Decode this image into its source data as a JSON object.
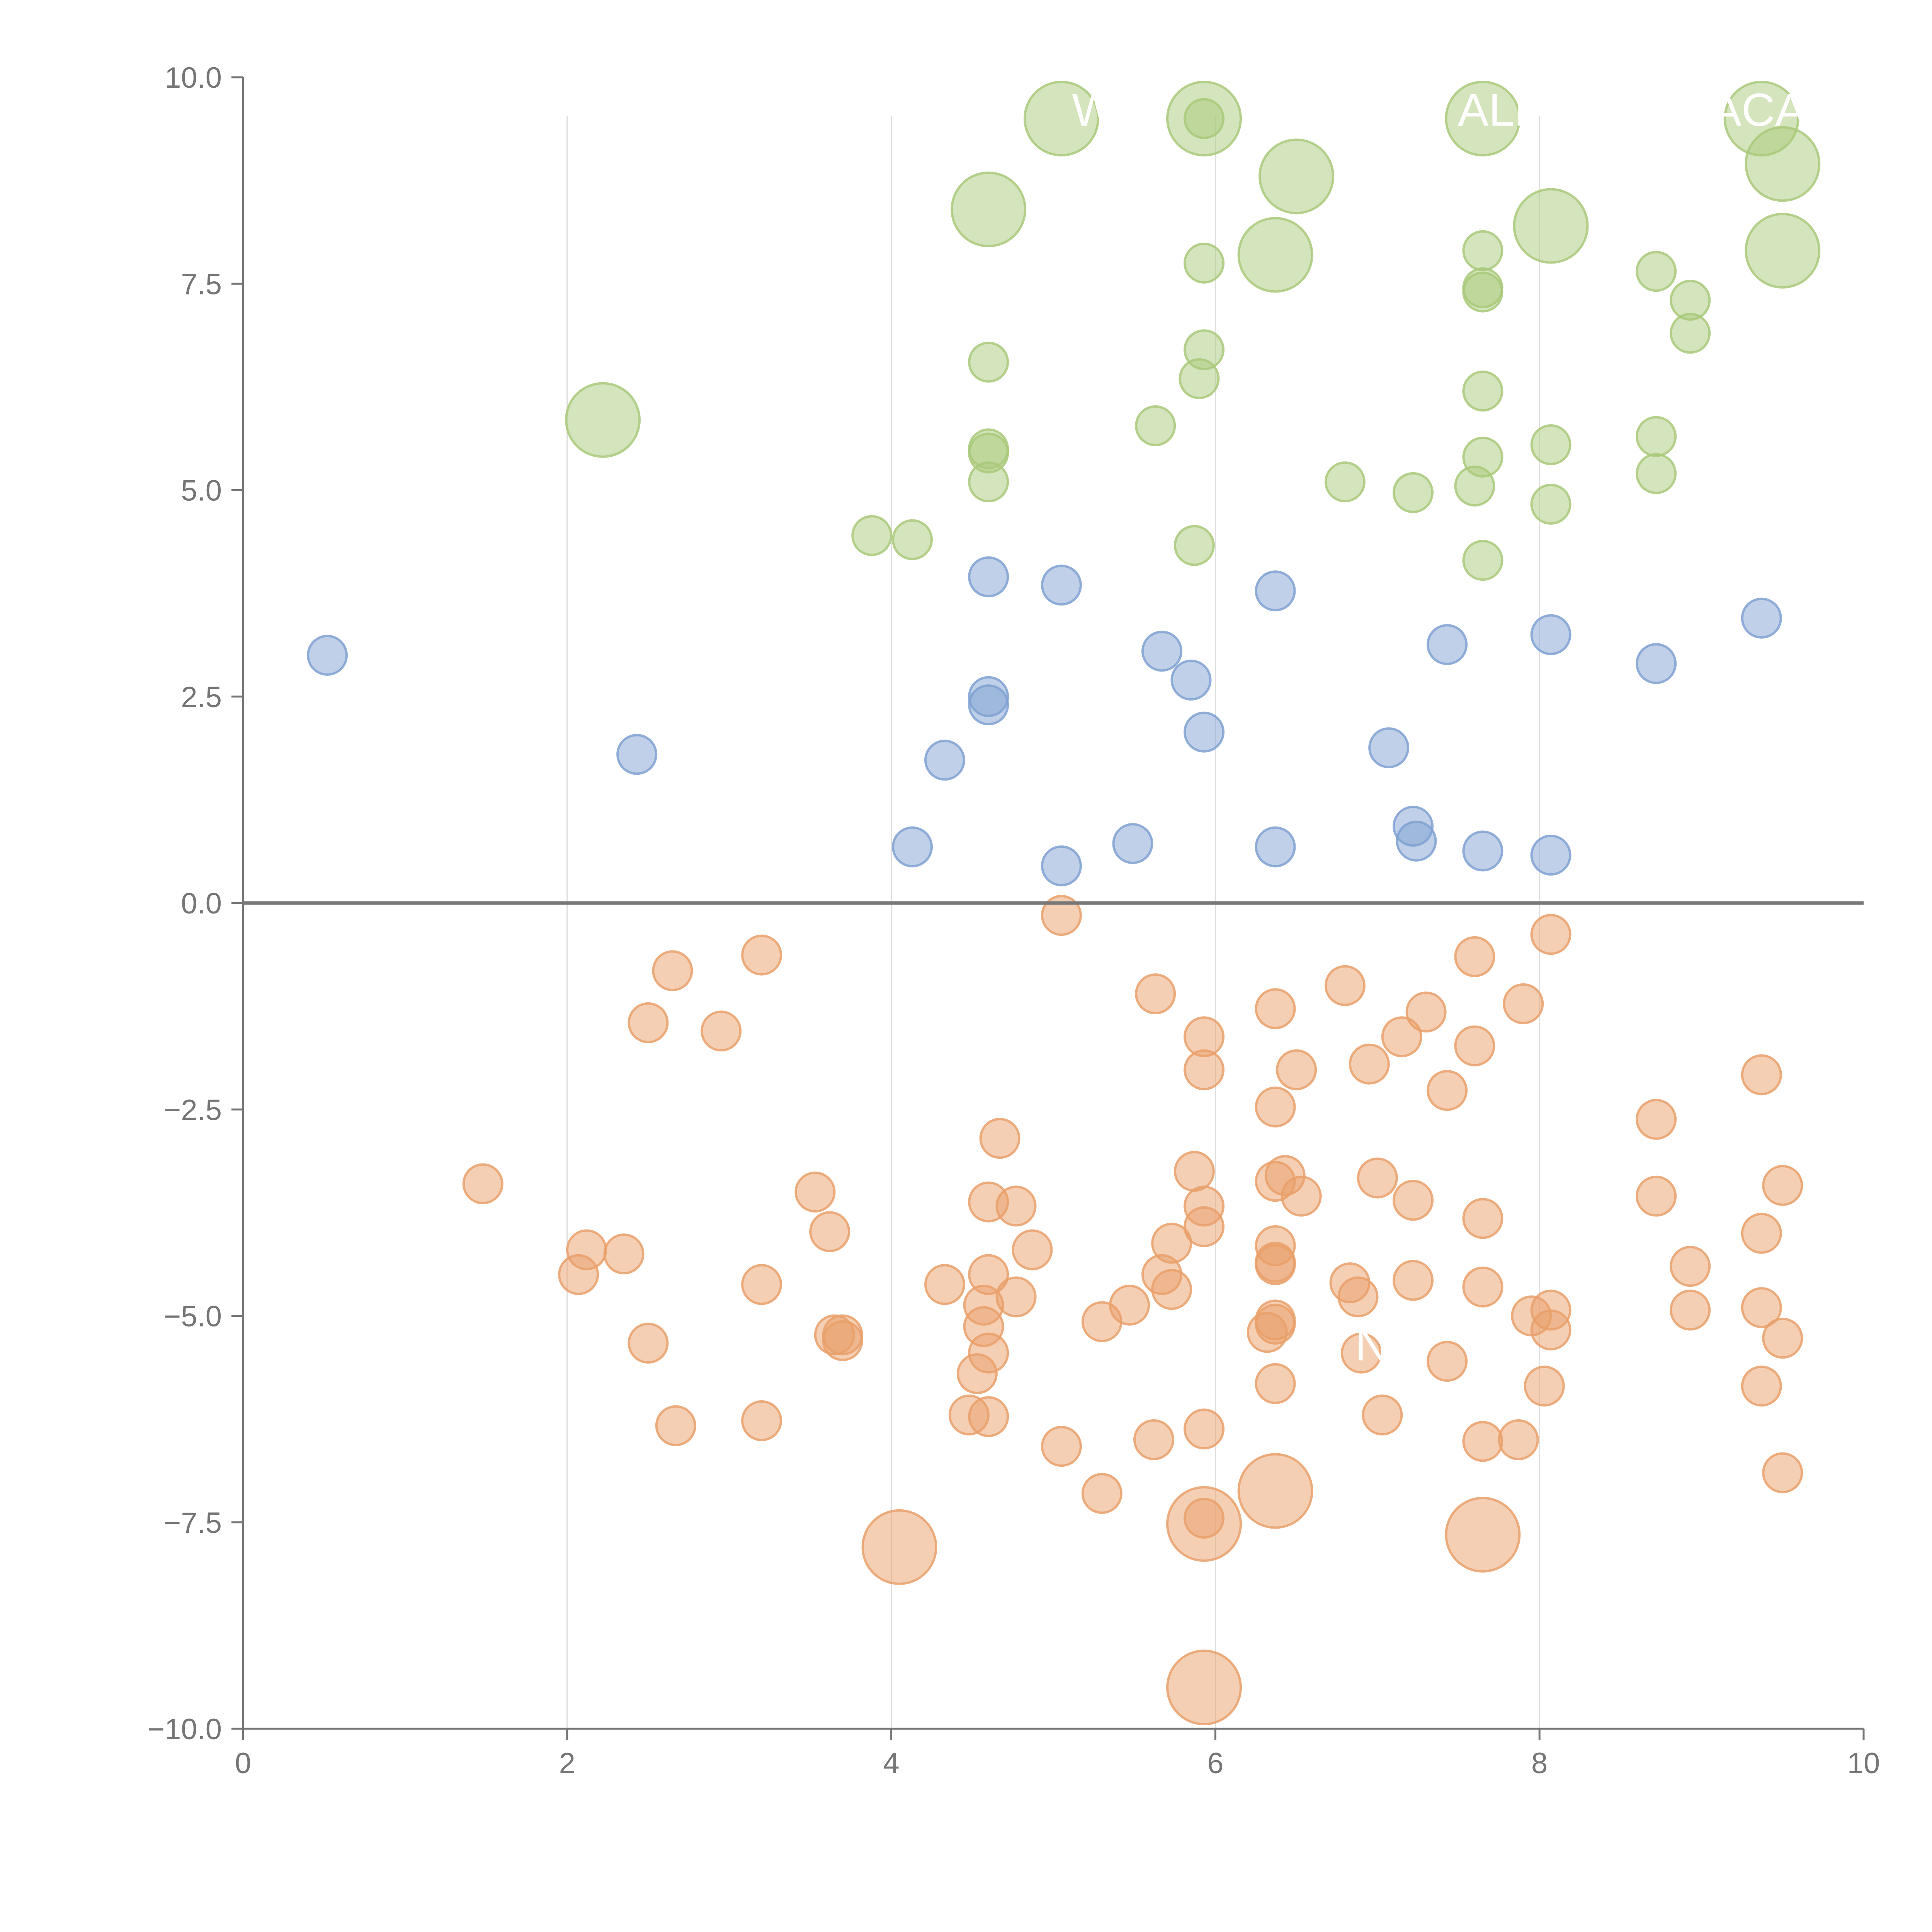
{
  "chart_data": {
    "type": "scatter",
    "subtype": "bubble",
    "title": "",
    "xlabel": "",
    "ylabel": "",
    "xlim": [
      0,
      10
    ],
    "ylim": [
      -10,
      10
    ],
    "x_ticks": [
      "0",
      "2",
      "4",
      "6",
      "8",
      "10"
    ],
    "y_ticks": [
      "10.0",
      "7.5",
      "5.0",
      "2.5",
      "0.0",
      "−2.5",
      "−5.0",
      "−7.5",
      "−10.0"
    ],
    "x_tick_values": [
      0,
      2,
      4,
      6,
      8,
      10
    ],
    "y_tick_values": [
      10,
      7.5,
      5,
      2.5,
      0,
      -2.5,
      -5,
      -7.5,
      -10
    ],
    "vertical_gridlines_at": [
      2,
      4,
      6,
      8
    ],
    "zero_line": 0,
    "colors": {
      "green": "#a9c97a",
      "blue": "#7fa1d2",
      "orange": "#e9a06a",
      "axis": "#757575",
      "grid": "#dddddd",
      "zero_line": "#777777"
    },
    "series": [
      {
        "name": "green",
        "color": "#a9c97a",
        "points": [
          [
            5.05,
            9.5,
            2
          ],
          [
            5.93,
            9.5,
            2
          ],
          [
            5.93,
            9.5,
            1
          ],
          [
            7.65,
            9.5,
            2
          ],
          [
            9.37,
            9.5,
            2
          ],
          [
            9.5,
            8.95,
            2
          ],
          [
            6.5,
            8.8,
            2
          ],
          [
            4.6,
            8.4,
            2
          ],
          [
            8.07,
            8.2,
            2
          ],
          [
            6.37,
            7.85,
            2
          ],
          [
            9.5,
            7.9,
            2
          ],
          [
            5.93,
            7.75,
            1
          ],
          [
            7.65,
            7.9,
            1
          ],
          [
            7.65,
            7.45,
            1
          ],
          [
            7.65,
            7.4,
            1
          ],
          [
            8.72,
            7.65,
            1
          ],
          [
            8.93,
            7.3,
            1
          ],
          [
            8.93,
            6.9,
            1
          ],
          [
            4.6,
            6.55,
            1
          ],
          [
            5.93,
            6.7,
            1
          ],
          [
            5.9,
            6.35,
            1
          ],
          [
            7.65,
            6.2,
            1
          ],
          [
            2.22,
            5.85,
            2
          ],
          [
            5.63,
            5.78,
            1
          ],
          [
            4.6,
            5.5,
            1
          ],
          [
            4.6,
            5.45,
            1
          ],
          [
            8.07,
            5.55,
            1
          ],
          [
            8.72,
            5.65,
            1
          ],
          [
            7.65,
            5.4,
            1
          ],
          [
            4.6,
            5.1,
            1
          ],
          [
            6.8,
            5.1,
            1
          ],
          [
            7.22,
            4.97,
            1
          ],
          [
            7.6,
            5.05,
            1
          ],
          [
            8.72,
            5.2,
            1
          ],
          [
            8.07,
            4.83,
            1
          ],
          [
            3.88,
            4.45,
            1
          ],
          [
            4.13,
            4.4,
            1
          ],
          [
            5.87,
            4.33,
            1
          ],
          [
            7.65,
            4.15,
            1
          ]
        ]
      },
      {
        "name": "blue",
        "color": "#7fa1d2",
        "points": [
          [
            0.52,
            3.0,
            1
          ],
          [
            4.6,
            3.95,
            1
          ],
          [
            5.05,
            3.85,
            1
          ],
          [
            6.37,
            3.78,
            1
          ],
          [
            9.37,
            3.45,
            1
          ],
          [
            8.07,
            3.25,
            1
          ],
          [
            7.43,
            3.13,
            1
          ],
          [
            5.67,
            3.05,
            1
          ],
          [
            8.72,
            2.9,
            1
          ],
          [
            5.85,
            2.7,
            1
          ],
          [
            4.6,
            2.5,
            1
          ],
          [
            4.6,
            2.4,
            1
          ],
          [
            5.93,
            2.07,
            1
          ],
          [
            7.07,
            1.88,
            1
          ],
          [
            2.43,
            1.8,
            1
          ],
          [
            4.33,
            1.73,
            1
          ],
          [
            7.22,
            0.93,
            1
          ],
          [
            7.24,
            0.75,
            1
          ],
          [
            4.13,
            0.68,
            1
          ],
          [
            5.49,
            0.72,
            1
          ],
          [
            6.37,
            0.68,
            1
          ],
          [
            7.65,
            0.63,
            1
          ],
          [
            8.07,
            0.58,
            1
          ],
          [
            5.05,
            0.45,
            1
          ]
        ]
      },
      {
        "name": "orange",
        "color": "#e9a06a",
        "points": [
          [
            5.05,
            -0.15,
            1
          ],
          [
            8.07,
            -0.38,
            1
          ],
          [
            3.2,
            -0.63,
            1
          ],
          [
            7.6,
            -0.65,
            1
          ],
          [
            2.65,
            -0.82,
            1
          ],
          [
            6.8,
            -1.0,
            1
          ],
          [
            5.63,
            -1.1,
            1
          ],
          [
            7.9,
            -1.22,
            1
          ],
          [
            6.37,
            -1.28,
            1
          ],
          [
            7.3,
            -1.32,
            1
          ],
          [
            2.5,
            -1.45,
            1
          ],
          [
            2.95,
            -1.55,
            1
          ],
          [
            7.15,
            -1.62,
            1
          ],
          [
            5.93,
            -1.62,
            1
          ],
          [
            7.6,
            -1.73,
            1
          ],
          [
            6.95,
            -1.95,
            1
          ],
          [
            5.93,
            -2.02,
            1
          ],
          [
            6.5,
            -2.02,
            1
          ],
          [
            9.37,
            -2.08,
            1
          ],
          [
            7.43,
            -2.27,
            1
          ],
          [
            6.37,
            -2.47,
            1
          ],
          [
            8.72,
            -2.62,
            1
          ],
          [
            4.67,
            -2.85,
            1
          ],
          [
            5.87,
            -3.25,
            1
          ],
          [
            6.43,
            -3.3,
            1
          ],
          [
            6.37,
            -3.37,
            1
          ],
          [
            7.0,
            -3.33,
            1
          ],
          [
            1.48,
            -3.4,
            1
          ],
          [
            9.5,
            -3.42,
            1
          ],
          [
            3.53,
            -3.5,
            1
          ],
          [
            6.53,
            -3.55,
            1
          ],
          [
            8.72,
            -3.55,
            1
          ],
          [
            7.22,
            -3.6,
            1
          ],
          [
            4.6,
            -3.62,
            1
          ],
          [
            5.93,
            -3.67,
            1
          ],
          [
            4.77,
            -3.67,
            1
          ],
          [
            7.65,
            -3.82,
            1
          ],
          [
            5.93,
            -3.92,
            1
          ],
          [
            3.62,
            -3.98,
            1
          ],
          [
            9.37,
            -4.0,
            1
          ],
          [
            5.73,
            -4.12,
            1
          ],
          [
            6.37,
            -4.15,
            1
          ],
          [
            4.87,
            -4.2,
            1
          ],
          [
            2.12,
            -4.2,
            1
          ],
          [
            2.35,
            -4.25,
            1
          ],
          [
            6.37,
            -4.35,
            1
          ],
          [
            6.37,
            -4.38,
            1
          ],
          [
            8.93,
            -4.4,
            1
          ],
          [
            4.6,
            -4.5,
            1
          ],
          [
            5.67,
            -4.5,
            1
          ],
          [
            2.07,
            -4.5,
            1
          ],
          [
            7.22,
            -4.57,
            1
          ],
          [
            6.83,
            -4.6,
            1
          ],
          [
            4.33,
            -4.62,
            1
          ],
          [
            3.2,
            -4.62,
            1
          ],
          [
            7.65,
            -4.65,
            1
          ],
          [
            5.73,
            -4.68,
            1
          ],
          [
            6.88,
            -4.77,
            1
          ],
          [
            4.77,
            -4.77,
            1
          ],
          [
            4.57,
            -4.87,
            1
          ],
          [
            5.47,
            -4.87,
            1
          ],
          [
            8.07,
            -4.93,
            1
          ],
          [
            8.93,
            -4.93,
            1
          ],
          [
            9.37,
            -4.9,
            1
          ],
          [
            7.95,
            -5.0,
            1
          ],
          [
            6.37,
            -5.05,
            1
          ],
          [
            5.3,
            -5.07,
            1
          ],
          [
            6.37,
            -5.1,
            1
          ],
          [
            4.57,
            -5.13,
            1
          ],
          [
            8.07,
            -5.17,
            1
          ],
          [
            6.32,
            -5.2,
            1
          ],
          [
            3.65,
            -5.23,
            1
          ],
          [
            3.7,
            -5.23,
            1
          ],
          [
            3.7,
            -5.3,
            1
          ],
          [
            9.5,
            -5.27,
            1
          ],
          [
            2.5,
            -5.33,
            1
          ],
          [
            6.9,
            -5.45,
            1
          ],
          [
            4.6,
            -5.45,
            1
          ],
          [
            7.43,
            -5.55,
            1
          ],
          [
            4.53,
            -5.7,
            1
          ],
          [
            6.37,
            -5.82,
            1
          ],
          [
            8.03,
            -5.85,
            1
          ],
          [
            9.37,
            -5.85,
            1
          ],
          [
            4.48,
            -6.2,
            1
          ],
          [
            4.6,
            -6.22,
            1
          ],
          [
            7.03,
            -6.2,
            1
          ],
          [
            3.2,
            -6.27,
            1
          ],
          [
            2.67,
            -6.33,
            1
          ],
          [
            5.93,
            -6.37,
            1
          ],
          [
            5.62,
            -6.5,
            1
          ],
          [
            7.87,
            -6.5,
            1
          ],
          [
            7.65,
            -6.52,
            1
          ],
          [
            5.05,
            -6.58,
            1
          ],
          [
            9.5,
            -6.9,
            1
          ],
          [
            6.37,
            -7.12,
            2
          ],
          [
            5.3,
            -7.15,
            1
          ],
          [
            5.93,
            -7.45,
            1
          ],
          [
            5.93,
            -7.52,
            2
          ],
          [
            7.65,
            -7.65,
            2
          ],
          [
            4.05,
            -7.8,
            2
          ],
          [
            5.93,
            -9.5,
            2
          ]
        ]
      }
    ],
    "bubble_size_note": "third value: 1 = small bubble, 2 = large bubble",
    "text_labels": [
      {
        "text": "W",
        "x": 5.25,
        "y": 9.6
      },
      {
        "text": "ALL",
        "x": 7.75,
        "y": 9.6
      },
      {
        "text": "ACA",
        "x": 9.35,
        "y": 9.6
      },
      {
        "text": "NW",
        "x": 7.1,
        "y": -5.35
      }
    ]
  }
}
